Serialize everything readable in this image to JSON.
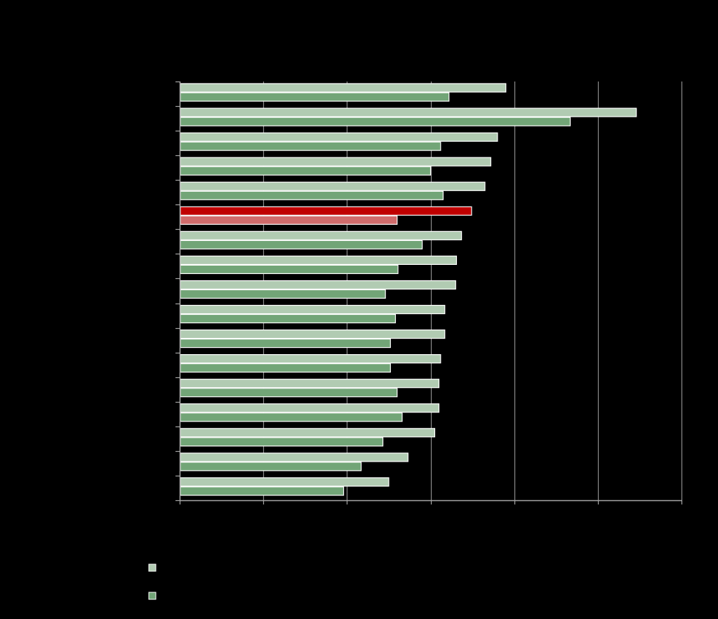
{
  "chart_data": {
    "type": "bar",
    "orientation": "horizontal",
    "grid": true,
    "legend_position": "bottom-left",
    "xlim": [
      0,
      6
    ],
    "categories": [
      "",
      "",
      "",
      "",
      "",
      "",
      "",
      "",
      "",
      "",
      "",
      "",
      "",
      "",
      "",
      "",
      ""
    ],
    "highlight_index": 5,
    "colors": {
      "background": "#000000",
      "series1": "#b1cbb2",
      "series2": "#72a577",
      "highlight1": "#c00000",
      "highlight2": "#d06b6b",
      "bar_border": "#ffffff",
      "grid": "#8c8c8c",
      "axis": "#a6a6a6"
    },
    "series": [
      {
        "values": [
          3.9,
          5.46,
          3.8,
          3.72,
          3.65,
          3.49,
          3.37,
          3.31,
          3.3,
          3.17,
          3.17,
          3.12,
          3.1,
          3.1,
          3.05,
          2.73,
          2.5
        ]
      },
      {
        "values": [
          3.22,
          4.67,
          3.12,
          3.0,
          3.15,
          2.6,
          2.9,
          2.61,
          2.46,
          2.58,
          2.52,
          2.52,
          2.6,
          2.66,
          2.43,
          2.17,
          1.96
        ]
      }
    ],
    "legend": [
      {
        "marker_color": "#b1cbb2",
        "label": ""
      },
      {
        "marker_color": "#72a577",
        "label": ""
      }
    ]
  }
}
